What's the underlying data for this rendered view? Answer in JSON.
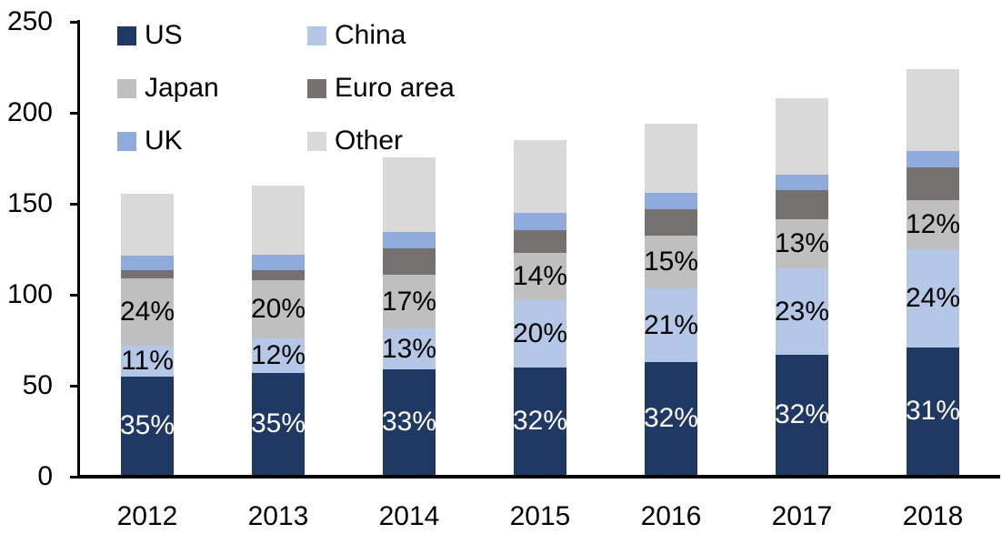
{
  "chart_data": {
    "type": "bar",
    "stacked": true,
    "title": "",
    "xlabel": "",
    "ylabel": "",
    "categories": [
      "2012",
      "2013",
      "2014",
      "2015",
      "2016",
      "2017",
      "2018"
    ],
    "series": [
      {
        "name": "US",
        "color": "#1F3864",
        "values": [
          54,
          56,
          58,
          59,
          62,
          66,
          70
        ],
        "labels": [
          "35%",
          "35%",
          "33%",
          "32%",
          "32%",
          "32%",
          "31%"
        ],
        "label_color": "#FFFFFF"
      },
      {
        "name": "China",
        "color": "#B4C7E7",
        "values": [
          17,
          19,
          22.5,
          37,
          40.5,
          47.5,
          54
        ],
        "labels": [
          "11%",
          "12%",
          "13%",
          "20%",
          "21%",
          "23%",
          "24%"
        ],
        "label_color": "#000000"
      },
      {
        "name": "Japan",
        "color": "#BFBFBF",
        "values": [
          37,
          32,
          29.5,
          26,
          29,
          27,
          27
        ],
        "labels": [
          "24%",
          "20%",
          "17%",
          "14%",
          "15%",
          "13%",
          "12%"
        ],
        "label_color": "#000000"
      },
      {
        "name": "Euro area",
        "color": "#767171",
        "values": [
          4.5,
          5.5,
          14.5,
          12.5,
          14.5,
          16,
          18
        ],
        "labels": [
          "",
          "",
          "",
          "",
          "",
          "",
          ""
        ],
        "label_color": "#000000"
      },
      {
        "name": "UK",
        "color": "#8FAADC",
        "values": [
          8,
          8.5,
          9,
          9.5,
          9,
          8.5,
          9
        ],
        "labels": [
          "",
          "",
          "",
          "",
          "",
          "",
          ""
        ],
        "label_color": "#000000"
      },
      {
        "name": "Other",
        "color": "#D9D9D9",
        "values": [
          34,
          38,
          41,
          40,
          38,
          42,
          45
        ],
        "labels": [
          "",
          "",
          "",
          "",
          "",
          "",
          ""
        ],
        "label_color": "#000000"
      }
    ],
    "approx_totals": [
      154.5,
      159,
      174.5,
      184,
      193,
      207,
      223
    ],
    "y_axis": {
      "min": 0,
      "max": 250,
      "tick_interval": 50,
      "ticks": [
        0,
        50,
        100,
        150,
        200,
        250
      ]
    },
    "legend": {
      "position": "top-left",
      "columns": 2,
      "order": [
        "US",
        "China",
        "Japan",
        "Euro area",
        "UK",
        "Other"
      ]
    },
    "grid": false,
    "axis_color": "#000000",
    "text_color": "#000000",
    "background_color": "#FFFFFF"
  }
}
